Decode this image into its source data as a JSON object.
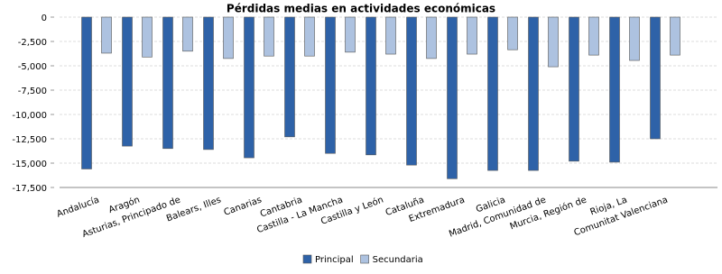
{
  "chart_data": {
    "type": "bar",
    "title": "Pérdidas medias en actividades económicas",
    "categories": [
      "Andalucía",
      "Aragón",
      "Asturias, Principado de",
      "Balears, Illes",
      "Canarias",
      "Cantabria",
      "Castilla - La Mancha",
      "Castilla y León",
      "Cataluña",
      "Extremadura",
      "Galicia",
      "Madrid, Comunidad de",
      "Murcia, Región de",
      "Rioja, La",
      "Comunitat Valenciana"
    ],
    "series": [
      {
        "name": "Principal",
        "color": "#2e62a8",
        "values": [
          -15600,
          -13250,
          -13500,
          -13600,
          -14450,
          -12300,
          -14000,
          -14150,
          -15200,
          -16600,
          -15750,
          -15750,
          -14800,
          -14900,
          -12500
        ]
      },
      {
        "name": "Secundaria",
        "color": "#adc2e0",
        "values": [
          -3700,
          -4100,
          -3500,
          -4250,
          -4000,
          -4000,
          -3600,
          -3800,
          -4250,
          -3800,
          -3350,
          -5100,
          -3900,
          -4450,
          -3900
        ]
      }
    ],
    "ylim": [
      -17500,
      0
    ],
    "yticks": [
      0,
      {
        "value": -2500,
        "label": "-2,500"
      },
      {
        "value": -5000,
        "label": "-5,000"
      },
      {
        "value": -7500,
        "label": "-7,500"
      },
      {
        "value": -10000,
        "label": "-10,000"
      },
      {
        "value": -12500,
        "label": "-12,500"
      },
      {
        "value": -15000,
        "label": "-15,000"
      },
      {
        "value": -17500,
        "label": "-17,500"
      }
    ],
    "grid": true
  }
}
